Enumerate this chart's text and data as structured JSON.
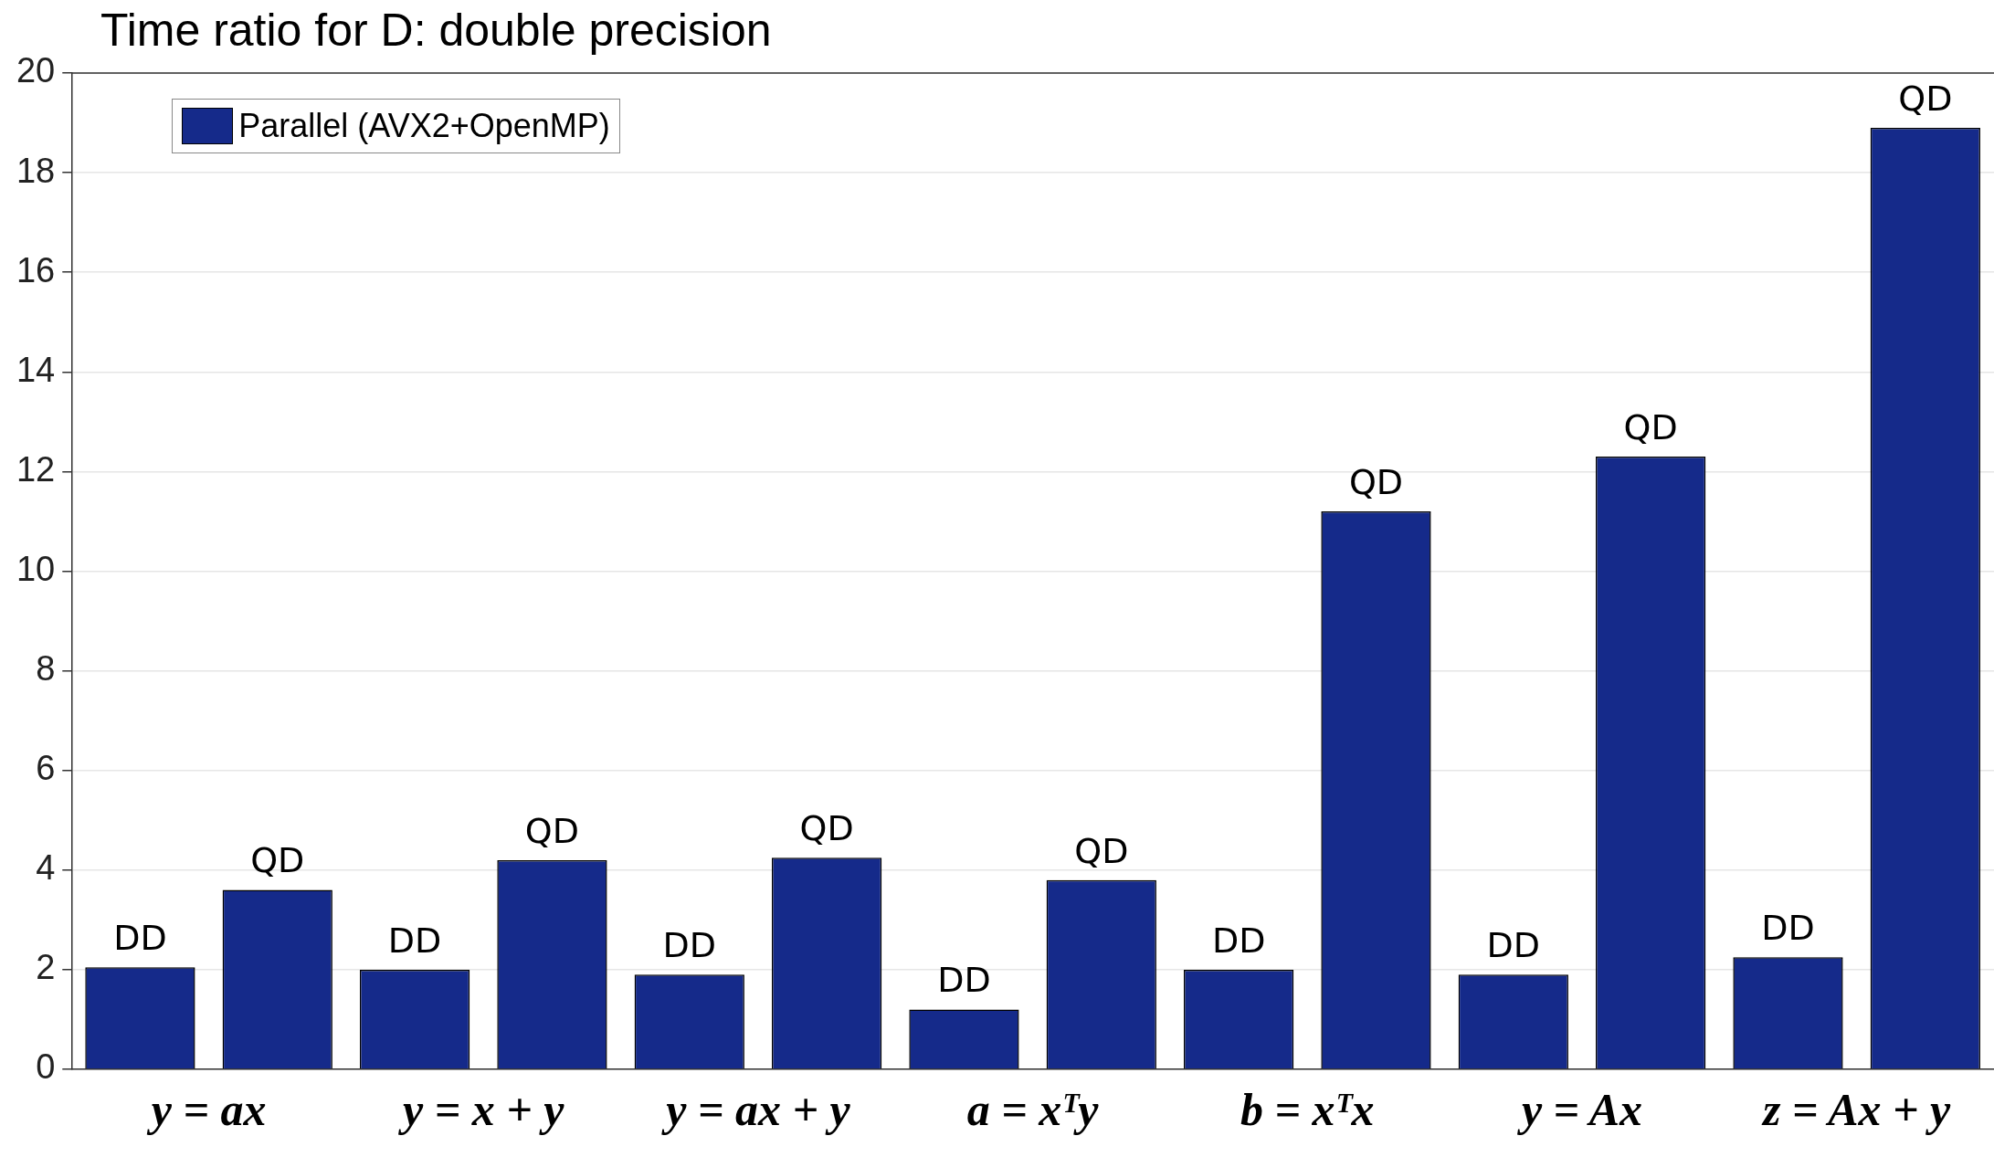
{
  "chart_data": {
    "type": "bar",
    "title": "Time ratio for D: double precision",
    "categories": [
      "y = ax",
      "y = x + y",
      "y = ax + y",
      "a = xᵀy",
      "b = xᵀx",
      "y = Ax",
      "z = Ax + y"
    ],
    "series": [
      {
        "name": "Parallel (AVX2+OpenMP)",
        "color": "#152a8a",
        "values": [
          2.05,
          2.0,
          1.9,
          1.2,
          2.0,
          1.9,
          2.25
        ],
        "value_labels": [
          "DD",
          "DD",
          "DD",
          "DD",
          "DD",
          "DD",
          "DD"
        ]
      },
      {
        "color": "#152a8a",
        "values": [
          3.6,
          4.2,
          4.25,
          3.8,
          11.2,
          12.3,
          18.9
        ],
        "value_labels": [
          "QD",
          "QD",
          "QD",
          "QD",
          "QD",
          "QD",
          "QD"
        ]
      }
    ],
    "ylim": [
      0,
      20
    ],
    "yticks": [
      0,
      2,
      4,
      6,
      8,
      10,
      12,
      14,
      16,
      18,
      20
    ],
    "grid": "y",
    "legend": "top left"
  }
}
